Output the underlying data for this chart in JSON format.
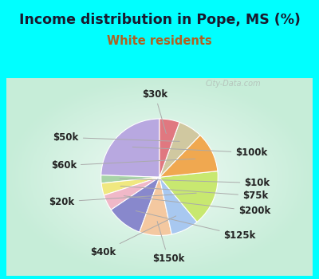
{
  "title": "Income distribution in Pope, MS (%)",
  "subtitle": "White residents",
  "title_color": "#1a1a2e",
  "subtitle_color": "#b06020",
  "background_outer": "#00FFFF",
  "watermark": "City-Data.com",
  "slices": [
    {
      "label": "$100k",
      "value": 22,
      "color": "#b8a8e0"
    },
    {
      "label": "$10k",
      "value": 2,
      "color": "#a8d4a8"
    },
    {
      "label": "$75k",
      "value": 3,
      "color": "#f0e880"
    },
    {
      "label": "$200k",
      "value": 4,
      "color": "#f0b8c8"
    },
    {
      "label": "$125k",
      "value": 9,
      "color": "#8888cc"
    },
    {
      "label": "$150k",
      "value": 8,
      "color": "#f4c8a0"
    },
    {
      "label": "$40k",
      "value": 7,
      "color": "#a8c8f0"
    },
    {
      "label": "$20k",
      "value": 14,
      "color": "#c8e870"
    },
    {
      "label": "$60k",
      "value": 10,
      "color": "#f0a850"
    },
    {
      "label": "$50k",
      "value": 6,
      "color": "#d0c8a0"
    },
    {
      "label": "$30k",
      "value": 5,
      "color": "#e07880"
    }
  ],
  "label_fontsize": 8.5,
  "title_fontsize": 12.5,
  "subtitle_fontsize": 10.5,
  "label_color": "#222222"
}
